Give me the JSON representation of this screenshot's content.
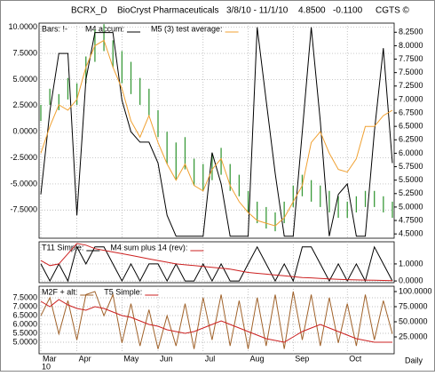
{
  "header": {
    "symbol": "BCRX_D",
    "company": "BioCryst Pharmaceuticals",
    "range": "3/8/10 - 11/1/10",
    "last": "4.8500",
    "change": "-0.1100",
    "brand": "CGTS ©"
  },
  "x_axis": {
    "categories": [
      "Mar",
      null,
      null,
      null,
      "Apr",
      null,
      null,
      null,
      null,
      "May",
      null,
      null,
      null,
      "Jun",
      null,
      null,
      null,
      null,
      "Jul",
      null,
      null,
      null,
      null,
      "Aug",
      null,
      null,
      null,
      null,
      "Sep",
      null,
      null,
      null,
      null,
      null,
      "Oct",
      null,
      null,
      null,
      null,
      null
    ],
    "year": "10",
    "frequency": "Daily"
  },
  "chart_data": [
    {
      "type": "line",
      "grid": true,
      "ylim": [
        -10.2,
        10.4
      ],
      "yticks": [
        {
          "value": 10,
          "label": "10.0000"
        },
        {
          "value": 7.5,
          "label": "7.5000"
        },
        {
          "value": 5,
          "label": "5.0000"
        },
        {
          "value": 2.5,
          "label": "2.5000"
        },
        {
          "value": 0,
          "label": "0.0000"
        },
        {
          "value": -2.5,
          "label": "-2.5000"
        },
        {
          "value": -5,
          "label": "-5.0000"
        },
        {
          "value": -7.5,
          "label": "-7.5000"
        }
      ],
      "y2lim": [
        4.42,
        8.42
      ],
      "y2ticks": [
        {
          "value": 8.25,
          "label": "8.2500"
        },
        {
          "value": 8,
          "label": "8.0000"
        },
        {
          "value": 7.75,
          "label": "7.7500"
        },
        {
          "value": 7.5,
          "label": "7.5000"
        },
        {
          "value": 7.25,
          "label": "7.2500"
        },
        {
          "value": 7,
          "label": "7.0000"
        },
        {
          "value": 6.75,
          "label": "6.7500"
        },
        {
          "value": 6.5,
          "label": "6.5000"
        },
        {
          "value": 6.25,
          "label": "6.2500"
        },
        {
          "value": 6,
          "label": "6.0000"
        },
        {
          "value": 5.75,
          "label": "5.7500"
        },
        {
          "value": 5.5,
          "label": "5.5000"
        },
        {
          "value": 5.25,
          "label": "5.2500"
        },
        {
          "value": 5,
          "label": "5.0000"
        },
        {
          "value": 4.75,
          "label": "4.7500"
        },
        {
          "value": 4.5,
          "label": "4.5000"
        }
      ],
      "series": [
        {
          "name": "Bars: !-",
          "type": "ohlc",
          "color": "#3a9a3a",
          "axis": "y2",
          "high": [
            6.9,
            7.2,
            7.1,
            7.4,
            7.3,
            7.8,
            8.3,
            8.4,
            8.1,
            7.9,
            7.7,
            7.4,
            7.2,
            6.8,
            6.4,
            6.2,
            6.3,
            5.9,
            5.8,
            6.0,
            6.1,
            5.8,
            5.6,
            5.3,
            5.1,
            5.0,
            4.9,
            5.1,
            5.4,
            5.6,
            5.5,
            5.4,
            5.3,
            5.2,
            5.1,
            5.2,
            5.3,
            5.3,
            5.2,
            5.1
          ],
          "low": [
            6.6,
            6.9,
            6.8,
            7.0,
            6.9,
            7.3,
            7.7,
            7.9,
            7.6,
            7.3,
            7.1,
            6.9,
            6.7,
            6.3,
            5.8,
            5.5,
            5.7,
            5.4,
            5.3,
            5.5,
            5.6,
            5.3,
            5.2,
            4.9,
            4.7,
            4.6,
            4.55,
            4.7,
            5.0,
            5.2,
            5.1,
            5.0,
            4.9,
            4.8,
            4.8,
            4.9,
            5.0,
            5.0,
            4.9,
            4.8
          ]
        },
        {
          "name": "M4 accum:",
          "type": "line",
          "color": "#000000",
          "axis": "y",
          "values": [
            -6,
            2,
            7.5,
            7.5,
            -8,
            5,
            9.5,
            9.5,
            9.5,
            3,
            0,
            -1,
            -1,
            -3,
            -8,
            -10,
            -10,
            -10,
            -10,
            -2,
            -5,
            -10,
            -10,
            -10,
            10,
            3,
            -4,
            -10,
            -10,
            0,
            10,
            1,
            -10,
            -6,
            -5,
            -10,
            -10,
            0,
            8,
            -3
          ]
        },
        {
          "name": "M5 (3) test average:",
          "type": "line",
          "color": "#f0a030",
          "axis": "y2",
          "values": [
            6.0,
            6.5,
            6.9,
            6.8,
            7.0,
            7.6,
            8.0,
            8.1,
            7.6,
            7.2,
            6.6,
            6.3,
            6.7,
            6.2,
            5.8,
            5.5,
            5.8,
            5.4,
            5.3,
            5.7,
            5.9,
            5.4,
            5.1,
            4.9,
            4.75,
            4.7,
            4.65,
            4.8,
            5.1,
            5.4,
            6.2,
            6.4,
            6.0,
            5.7,
            5.65,
            5.9,
            6.5,
            6.5,
            6.7,
            6.8
          ]
        }
      ]
    },
    {
      "type": "line",
      "grid": true,
      "ylim": [
        -0.1,
        2.3
      ],
      "y2lim": [
        -0.1,
        2.3
      ],
      "y2ticks": [
        {
          "value": 1,
          "label": "1.0000"
        },
        {
          "value": 0,
          "label": "0.0000"
        }
      ],
      "series": [
        {
          "name": "T11 Simple:",
          "type": "line",
          "color": "#000000",
          "axis": "y",
          "values": [
            1,
            0,
            1,
            0,
            2,
            1,
            2,
            2,
            1,
            0,
            1,
            0,
            1,
            1,
            0,
            1,
            0,
            0,
            1,
            0,
            1,
            0,
            0,
            1,
            2,
            1,
            0,
            1,
            0,
            2,
            2,
            1,
            0,
            1,
            0,
            1,
            0,
            2,
            1,
            0
          ]
        },
        {
          "name": "M4 sum plus 14 (rev):",
          "type": "line",
          "color": "#cc2020",
          "axis": "y",
          "values": [
            1.2,
            0.9,
            1.0,
            1.6,
            2.2,
            2.1,
            1.9,
            1.8,
            1.7,
            1.6,
            1.5,
            1.4,
            1.3,
            1.2,
            1.1,
            1.0,
            0.95,
            0.9,
            0.85,
            0.8,
            0.75,
            0.7,
            0.6,
            0.5,
            0.45,
            0.4,
            0.35,
            0.3,
            0.25,
            0.2,
            0.18,
            0.15,
            0.12,
            0.1,
            0.08,
            0.06,
            0.05,
            0.04,
            0.03,
            0.02
          ]
        }
      ]
    },
    {
      "type": "line",
      "grid": true,
      "ylim": [
        4.35,
        8.15
      ],
      "yticks": [
        {
          "value": 7.5,
          "label": "7.5000"
        },
        {
          "value": 7,
          "label": "7.0000"
        },
        {
          "value": 6.5,
          "label": "6.5000"
        },
        {
          "value": 6,
          "label": "6.0000"
        },
        {
          "value": 5.5,
          "label": "5.5000"
        },
        {
          "value": 5,
          "label": "5.0000"
        }
      ],
      "y2lim": [
        -2.9,
        108.8
      ],
      "y2ticks": [
        {
          "value": 100,
          "label": "100.0000"
        },
        {
          "value": 75,
          "label": "75.0000"
        },
        {
          "value": 50,
          "label": "50.0000"
        },
        {
          "value": 25,
          "label": "25.0000"
        }
      ],
      "series": [
        {
          "name": "M2F + alt:",
          "type": "line",
          "color": "#a0622a",
          "axis": "y2",
          "values": [
            60,
            90,
            30,
            85,
            20,
            95,
            100,
            60,
            95,
            15,
            80,
            10,
            70,
            5,
            60,
            10,
            80,
            5,
            90,
            20,
            95,
            10,
            85,
            5,
            90,
            10,
            95,
            5,
            100,
            20,
            95,
            10,
            90,
            15,
            80,
            10,
            95,
            20,
            85,
            30
          ]
        },
        {
          "name": "T5 Simple:",
          "type": "line",
          "color": "#cc2020",
          "axis": "y",
          "values": [
            7.3,
            7.0,
            7.4,
            7.1,
            6.9,
            6.8,
            7.0,
            6.9,
            6.7,
            6.5,
            6.4,
            6.2,
            6.0,
            5.9,
            5.7,
            5.6,
            5.5,
            5.6,
            5.8,
            6.0,
            6.2,
            6.0,
            5.8,
            5.6,
            5.4,
            5.2,
            5.1,
            5.0,
            5.3,
            5.6,
            5.8,
            6.0,
            5.8,
            5.6,
            5.4,
            5.2,
            5.1,
            5.0,
            5.0,
            5.0
          ]
        }
      ]
    }
  ]
}
